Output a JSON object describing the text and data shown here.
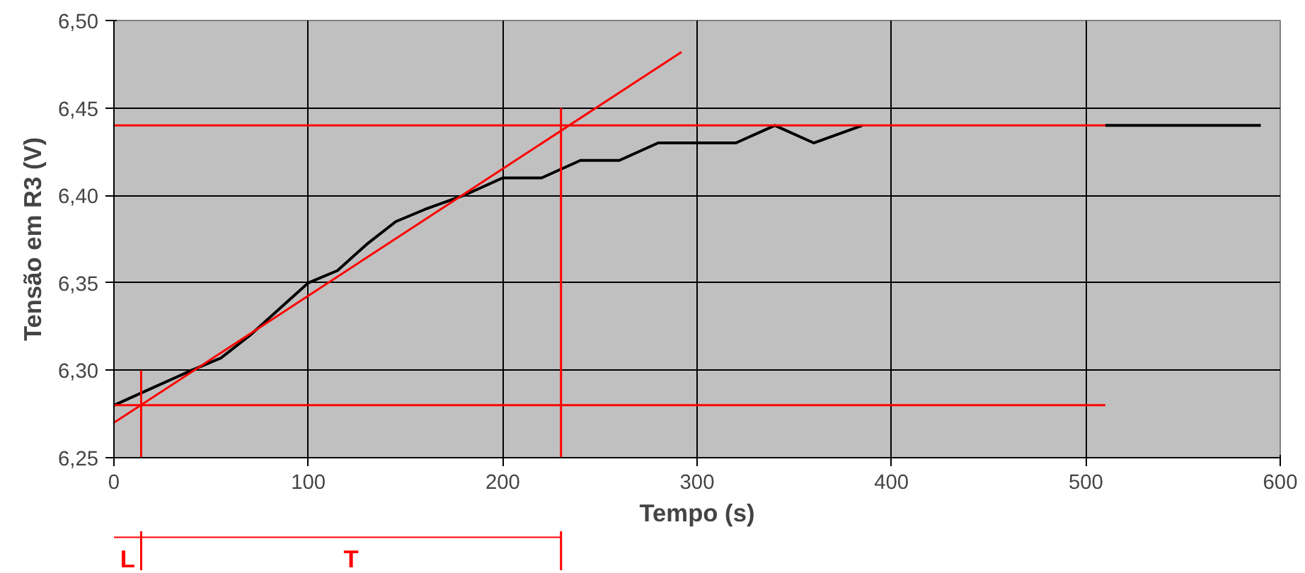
{
  "chart_data": {
    "type": "line",
    "xlabel": "Tempo (s)",
    "ylabel": "Tensão em R3 (V)",
    "xlim": [
      0,
      600
    ],
    "xticks": [
      0,
      100,
      200,
      300,
      400,
      500,
      600
    ],
    "ylim": [
      6.25,
      6.5
    ],
    "yticks": [
      {
        "value": 6.25,
        "label": "6,25"
      },
      {
        "value": 6.3,
        "label": "6,30"
      },
      {
        "value": 6.35,
        "label": "6,35"
      },
      {
        "value": 6.4,
        "label": "6,40"
      },
      {
        "value": 6.45,
        "label": "6,45"
      },
      {
        "value": 6.5,
        "label": "6,50"
      }
    ],
    "grid": true,
    "series": [
      {
        "color": "#000000",
        "x": [
          0,
          20,
          40,
          55,
          70,
          90,
          100,
          115,
          130,
          145,
          160,
          180,
          200,
          220,
          240,
          260,
          280,
          320,
          340,
          360,
          385,
          395,
          510,
          590
        ],
        "values": [
          6.28,
          6.29,
          6.3,
          6.307,
          6.32,
          6.34,
          6.35,
          6.357,
          6.372,
          6.385,
          6.392,
          6.4,
          6.41,
          6.41,
          6.42,
          6.42,
          6.43,
          6.43,
          6.44,
          6.43,
          6.44,
          null,
          6.44,
          6.44
        ]
      },
      {
        "color": "#ff0000",
        "x": [
          0,
          292
        ],
        "values": [
          6.27,
          6.482
        ]
      },
      {
        "color": "#ff0000",
        "x": [
          0,
          510
        ],
        "values": [
          6.44,
          6.44
        ]
      },
      {
        "color": "#ff0000",
        "x": [
          0,
          510
        ],
        "values": [
          6.28,
          6.28
        ]
      },
      {
        "color": "#ff0000",
        "x": [
          14,
          14
        ],
        "values": [
          6.25,
          6.3
        ]
      },
      {
        "color": "#ff0000",
        "x": [
          230,
          230
        ],
        "values": [
          6.25,
          6.45
        ]
      }
    ],
    "annotations": [
      "L",
      "T"
    ]
  }
}
